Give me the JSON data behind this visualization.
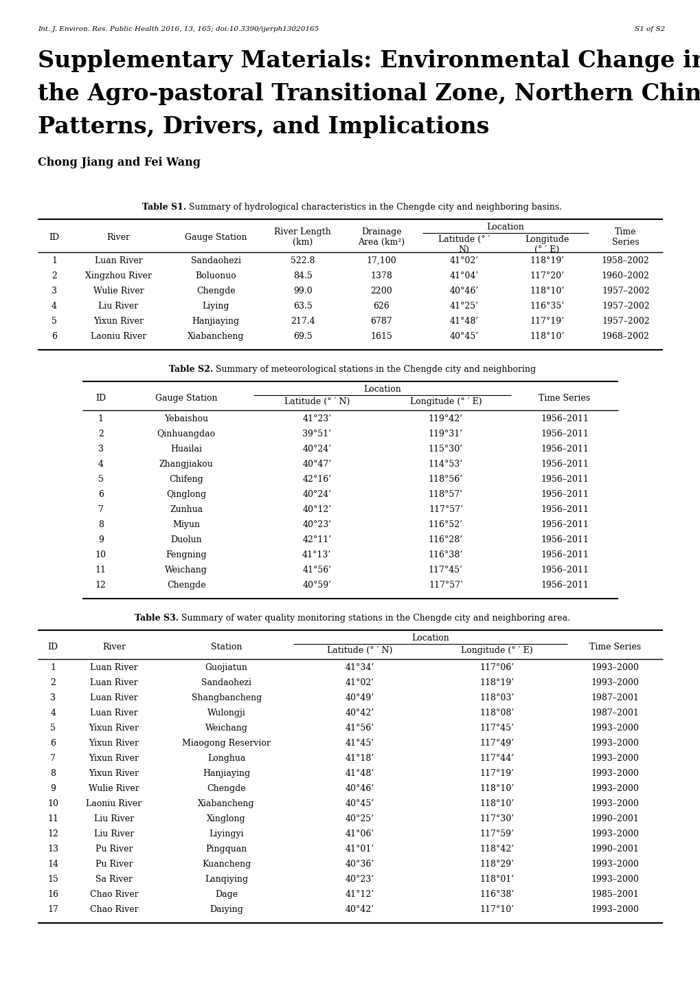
{
  "header_line": "Int. J. Environ. Res. Public Health 2016, 13, 165; doi:10.3390/ijerph13020165",
  "header_right": "S1 of S2",
  "main_title_line1": "Supplementary Materials: Environmental Change in",
  "main_title_line2": "the Agro-pastoral Transitional Zone, Northern China:",
  "main_title_line3": "Patterns, Drivers, and Implications",
  "authors": "Chong Jiang and Fei Wang",
  "table1_caption_bold": "Table S1.",
  "table1_caption_normal": " Summary of hydrological characteristics in the Chengde city and neighboring basins.",
  "table1_data": [
    [
      "1",
      "Luan River",
      "Sandaohezi",
      "522.8",
      "17,100",
      "41°02’",
      "118°19’",
      "1958–2002"
    ],
    [
      "2",
      "Xingzhou River",
      "Boluonuo",
      "84.5",
      "1378",
      "41°04’",
      "117°20’",
      "1960–2002"
    ],
    [
      "3",
      "Wulie River",
      "Chengde",
      "99.0",
      "2200",
      "40°46’",
      "118°10’",
      "1957–2002"
    ],
    [
      "4",
      "Liu River",
      "Liying",
      "63.5",
      "626",
      "41°25’",
      "116°35’",
      "1957–2002"
    ],
    [
      "5",
      "Yixun River",
      "Hanjiaying",
      "217.4",
      "6787",
      "41°48’",
      "117°19’",
      "1957–2002"
    ],
    [
      "6",
      "Laoniu River",
      "Xiabancheng",
      "69.5",
      "1615",
      "40°45’",
      "118°10’",
      "1968–2002"
    ]
  ],
  "table2_caption_bold": "Table S2.",
  "table2_caption_normal": " Summary of meteorological stations in the Chengde city and neighboring",
  "table2_data": [
    [
      "1",
      "Yebaishou",
      "41°23’",
      "119°42’",
      "1956–2011"
    ],
    [
      "2",
      "Qinhuangdao",
      "39°51’",
      "119°31’",
      "1956–2011"
    ],
    [
      "3",
      "Huailai",
      "40°24’",
      "115°30’",
      "1956–2011"
    ],
    [
      "4",
      "Zhangjiakou",
      "40°47’",
      "114°53’",
      "1956–2011"
    ],
    [
      "5",
      "Chifeng",
      "42°16’",
      "118°56’",
      "1956–2011"
    ],
    [
      "6",
      "Qinglong",
      "40°24’",
      "118°57’",
      "1956–2011"
    ],
    [
      "7",
      "Zunhua",
      "40°12’",
      "117°57’",
      "1956–2011"
    ],
    [
      "8",
      "Miyun",
      "40°23’",
      "116°52’",
      "1956–2011"
    ],
    [
      "9",
      "Duolun",
      "42°11’",
      "116°28’",
      "1956–2011"
    ],
    [
      "10",
      "Fengning",
      "41°13’",
      "116°38’",
      "1956–2011"
    ],
    [
      "11",
      "Weichang",
      "41°56’",
      "117°45’",
      "1956–2011"
    ],
    [
      "12",
      "Chengde",
      "40°59’",
      "117°57’",
      "1956–2011"
    ]
  ],
  "table3_caption_bold": "Table S3.",
  "table3_caption_normal": " Summary of water quality monitoring stations in the Chengde city and neighboring area.",
  "table3_data": [
    [
      "1",
      "Luan River",
      "Guojiatun",
      "41°34’",
      "117°06’",
      "1993–2000"
    ],
    [
      "2",
      "Luan River",
      "Sandaohezi",
      "41°02’",
      "118°19’",
      "1993–2000"
    ],
    [
      "3",
      "Luan River",
      "Shangbancheng",
      "40°49’",
      "118°03’",
      "1987–2001"
    ],
    [
      "4",
      "Luan River",
      "Wulongji",
      "40°42’",
      "118°08’",
      "1987–2001"
    ],
    [
      "5",
      "Yixun River",
      "Weichang",
      "41°56’",
      "117°45’",
      "1993–2000"
    ],
    [
      "6",
      "Yixun River",
      "Miaogong Reservior",
      "41°45’",
      "117°49’",
      "1993–2000"
    ],
    [
      "7",
      "Yixun River",
      "Longhua",
      "41°18’",
      "117°44’",
      "1993–2000"
    ],
    [
      "8",
      "Yixun River",
      "Hanjiaying",
      "41°48’",
      "117°19’",
      "1993–2000"
    ],
    [
      "9",
      "Wulie River",
      "Chengde",
      "40°46’",
      "118°10’",
      "1993–2000"
    ],
    [
      "10",
      "Laoniu River",
      "Xiabancheng",
      "40°45’",
      "118°10’",
      "1993–2000"
    ],
    [
      "11",
      "Liu River",
      "Xinglong",
      "40°25’",
      "117°30’",
      "1990–2001"
    ],
    [
      "12",
      "Liu River",
      "Liyingyi",
      "41°06’",
      "117°59’",
      "1993–2000"
    ],
    [
      "13",
      "Pu River",
      "Pingquan",
      "41°01’",
      "118°42’",
      "1990–2001"
    ],
    [
      "14",
      "Pu River",
      "Kuancheng",
      "40°36’",
      "118°29’",
      "1993–2000"
    ],
    [
      "15",
      "Sa River",
      "Lanqiying",
      "40°23’",
      "118°01’",
      "1993–2000"
    ],
    [
      "16",
      "Chao River",
      "Dage",
      "41°12’",
      "116°38’",
      "1985–2001"
    ],
    [
      "17",
      "Chao River",
      "Daiying",
      "40°42’",
      "117°10’",
      "1993–2000"
    ]
  ]
}
